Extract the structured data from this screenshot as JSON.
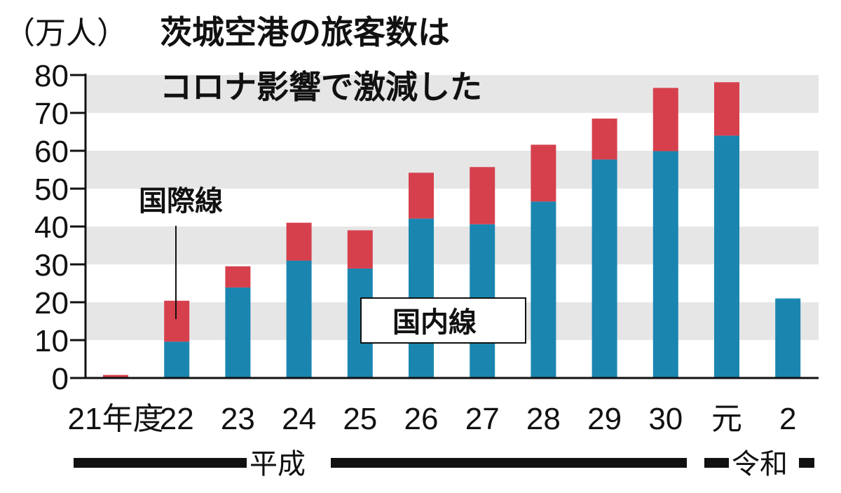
{
  "chart_data": {
    "type": "bar",
    "stacked": true,
    "title": "茨城空港の旅客数はコロナ影響で激減した",
    "title_lines": [
      "茨城空港の旅客数は",
      "コロナ影響で激減した"
    ],
    "ylabel": "（万人）",
    "ylim": [
      0,
      80
    ],
    "yticks": [
      "0",
      "10",
      "20",
      "30",
      "40",
      "50",
      "60",
      "70",
      "80"
    ],
    "grid": "alternating horizontal bands",
    "categories": [
      "21年度",
      "22",
      "23",
      "24",
      "25",
      "26",
      "27",
      "28",
      "29",
      "30",
      "元",
      "2"
    ],
    "series": [
      {
        "name": "国内線",
        "color": "#1a86b0",
        "values": [
          0,
          9.6,
          23.9,
          31,
          28.9,
          42.1,
          40.6,
          46.6,
          57.7,
          59.9,
          64,
          21
        ]
      },
      {
        "name": "国際線",
        "color": "#d6404c",
        "values": [
          0.8,
          10.8,
          5.6,
          10,
          10.1,
          12.1,
          15.1,
          15,
          10.8,
          16.7,
          14.1,
          0
        ]
      }
    ],
    "annotations": {
      "international": "国際線",
      "domestic": "国内線"
    },
    "eras": [
      {
        "name": "平成",
        "from": "21年度",
        "to": "30"
      },
      {
        "name": "令和",
        "from": "元",
        "to": "2"
      }
    ]
  }
}
